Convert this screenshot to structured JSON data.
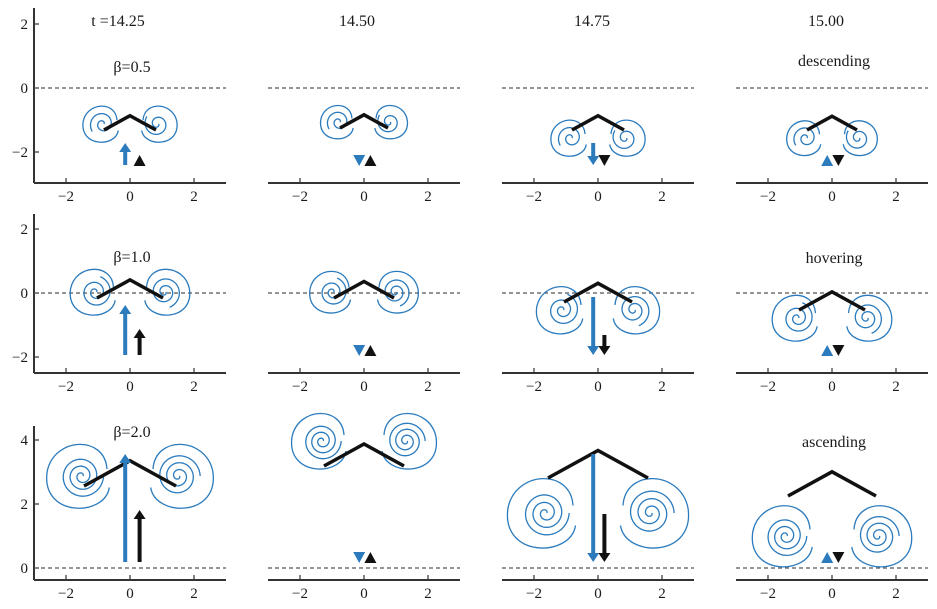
{
  "chart_data": {
    "type": "panel-grid",
    "times": [
      "t =14.25",
      "14.50",
      "14.75",
      "15.00"
    ],
    "x_ticks": [
      "−2",
      "0",
      "2"
    ],
    "rows": [
      {
        "beta_label": "β=0.5",
        "state_label": "descending",
        "y_ticks": [
          2,
          0,
          -2
        ],
        "y_tick_labels": [
          "2",
          "0",
          "−2"
        ],
        "ylim": [
          -2.6,
          2.6
        ],
        "dashed_line_y": 0
      },
      {
        "beta_label": "β=1.0",
        "state_label": "hovering",
        "y_ticks": [
          2,
          0,
          -2
        ],
        "y_tick_labels": [
          "2",
          "0",
          "−2"
        ],
        "ylim": [
          -2.6,
          2.6
        ],
        "dashed_line_y": 0
      },
      {
        "beta_label": "β=2.0",
        "state_label": "ascending",
        "y_ticks": [
          4,
          2,
          0
        ],
        "y_tick_labels": [
          "4",
          "2",
          "0"
        ],
        "ylim": [
          -0.4,
          4.4
        ],
        "dashed_line_y": 0
      }
    ],
    "xlim": [
      -3,
      3
    ],
    "colors": {
      "vortex": "#2b7bbd",
      "wing": "#111111",
      "dashed": "#555555"
    }
  }
}
